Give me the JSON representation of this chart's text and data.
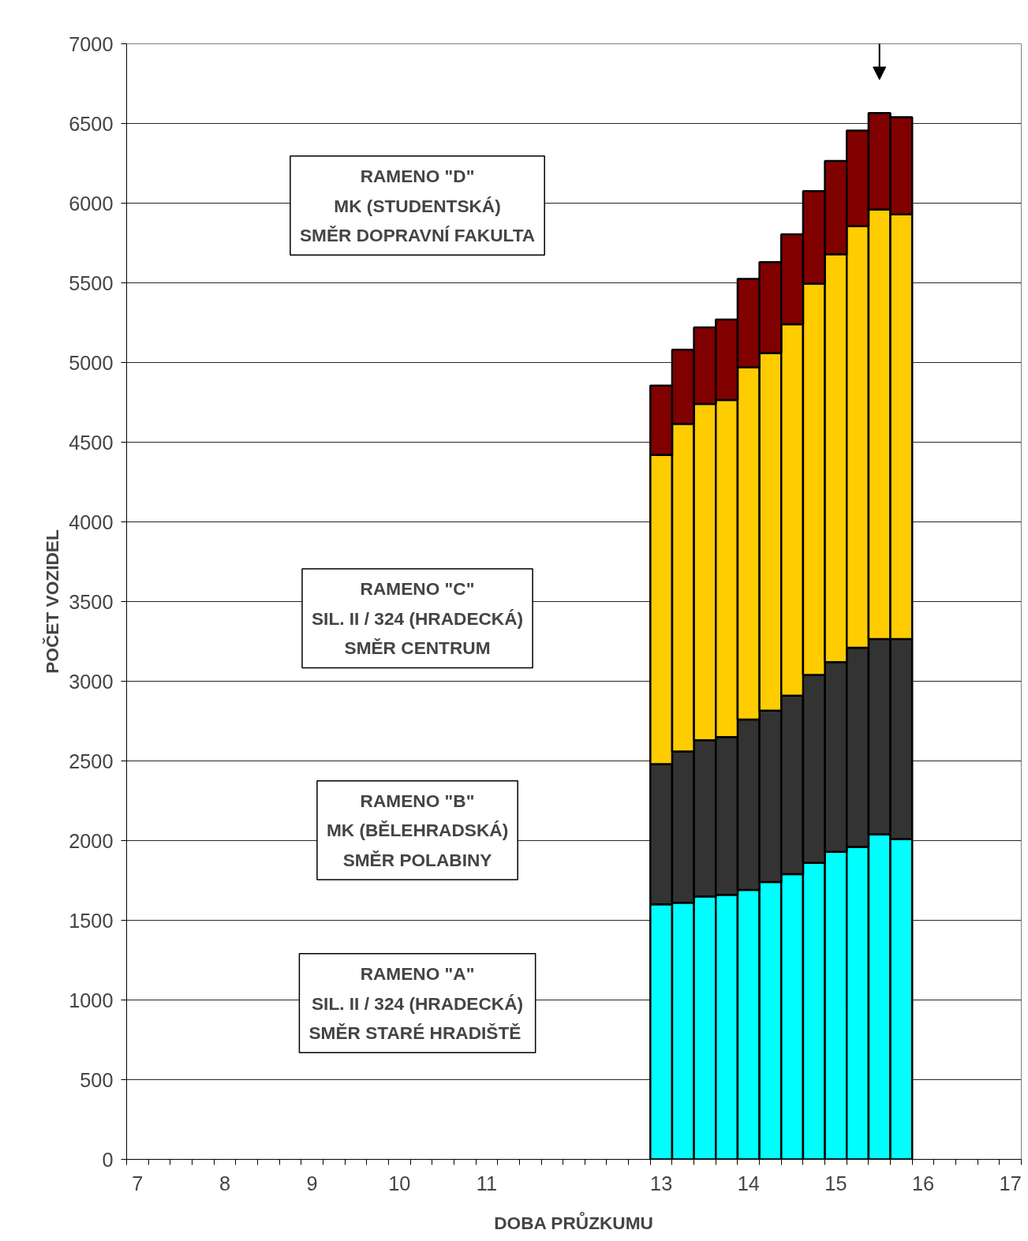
{
  "chart_data": {
    "type": "bar",
    "stacked": true,
    "xlabel": "DOBA PRŮZKUMU",
    "ylabel": "POČET VOZIDEL",
    "x": [
      13.0,
      13.25,
      13.5,
      13.75,
      14.0,
      14.25,
      14.5,
      14.75,
      15.0,
      15.25,
      15.5,
      15.75
    ],
    "xlim": [
      6.875,
      17.125
    ],
    "xticks": [
      7,
      8,
      9,
      10,
      11,
      13,
      14,
      15,
      16,
      17
    ],
    "ylim": [
      0,
      7000
    ],
    "yticks": [
      0,
      500,
      1000,
      1500,
      2000,
      2500,
      3000,
      3500,
      4000,
      4500,
      5000,
      5500,
      6000,
      6500,
      7000
    ],
    "grid": "y",
    "series": [
      {
        "color": "#00ffff",
        "values": [
          1600,
          1610,
          1650,
          1660,
          1690,
          1740,
          1790,
          1860,
          1930,
          1960,
          2040,
          2010
        ]
      },
      {
        "color": "#333333",
        "values": [
          880,
          950,
          980,
          990,
          1070,
          1075,
          1120,
          1180,
          1190,
          1250,
          1225,
          1255
        ]
      },
      {
        "color": "#ffcc00",
        "values": [
          1940,
          2055,
          2110,
          2115,
          2210,
          2245,
          2330,
          2455,
          2560,
          2645,
          2695,
          2665
        ]
      },
      {
        "color": "#800000",
        "values": [
          435,
          465,
          480,
          505,
          555,
          570,
          565,
          580,
          585,
          600,
          605,
          610
        ]
      }
    ],
    "annotations": [
      "RAMENO \"D\"\nMK (STUDENTSKÁ)\nSMĚR DOPRAVNÍ FAKULTA",
      "RAMENO \"C\"\nSIL. II / 324 (HRADECKÁ)\nSMĚR CENTRUM",
      "RAMENO \"B\"\nMK (BĚLEHRADSKÁ)\nSMĚR POLABINY",
      "RAMENO \"A\"\nSIL. II / 324 (HRADECKÁ)\nSMĚR  STARÉ HRADIŠTĚ"
    ]
  }
}
